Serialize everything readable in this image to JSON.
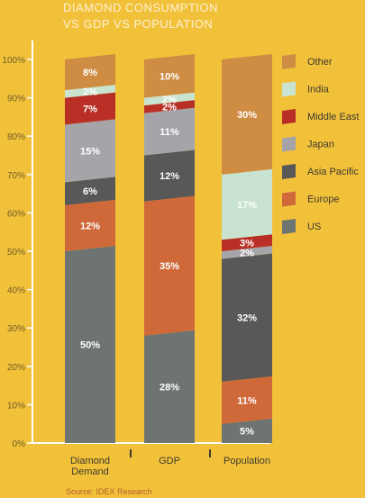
{
  "title_lines": [
    "DIAMOND CONSUMPTION",
    "VS GDP VS POPULATION"
  ],
  "source": "Source:  IDEX Research",
  "colors": {
    "background": "#f2c13a",
    "axis": "#ffffff",
    "tick_text": "#6f5c2a",
    "category_text": "#3e3a30",
    "label_text": "#ffffff"
  },
  "chart_data": {
    "type": "bar",
    "stacked": true,
    "title": "DIAMOND CONSUMPTION VS GDP VS POPULATION",
    "categories": [
      "Diamond Demand",
      "GDP",
      "Population"
    ],
    "category_lines": [
      [
        "Diamond",
        "Demand"
      ],
      [
        "GDP"
      ],
      [
        "Population"
      ]
    ],
    "ylim": [
      0,
      100
    ],
    "yticks": [
      "0%",
      "10%",
      "20%",
      "30%",
      "40%",
      "50%",
      "60%",
      "70%",
      "80%",
      "90%",
      "100%"
    ],
    "legend_position": "right",
    "series": [
      {
        "name": "US",
        "color": "#6e7471",
        "values": [
          50,
          28,
          5
        ],
        "labels": [
          "50%",
          "28%",
          "5%"
        ]
      },
      {
        "name": "Europe",
        "color": "#d0693a",
        "values": [
          12,
          35,
          11
        ],
        "labels": [
          "12%",
          "35%",
          "11%"
        ]
      },
      {
        "name": "Asia Pacific",
        "color": "#585858",
        "values": [
          6,
          12,
          32
        ],
        "labels": [
          "6%",
          "12%",
          "32%"
        ]
      },
      {
        "name": "Japan",
        "color": "#a5a4a9",
        "values": [
          15,
          11,
          2
        ],
        "labels": [
          "15%",
          "11%",
          "2%"
        ]
      },
      {
        "name": "Middle East",
        "color": "#b92f26",
        "values": [
          7,
          2,
          3
        ],
        "labels": [
          "7%",
          "2%",
          "3%"
        ]
      },
      {
        "name": "India",
        "color": "#c8e3cf",
        "values": [
          2,
          2,
          17
        ],
        "labels": [
          "2%",
          "2%",
          "17%"
        ]
      },
      {
        "name": "Other",
        "color": "#cf8d44",
        "values": [
          8,
          10,
          30
        ],
        "labels": [
          "8%",
          "10%",
          "30%"
        ]
      }
    ]
  }
}
